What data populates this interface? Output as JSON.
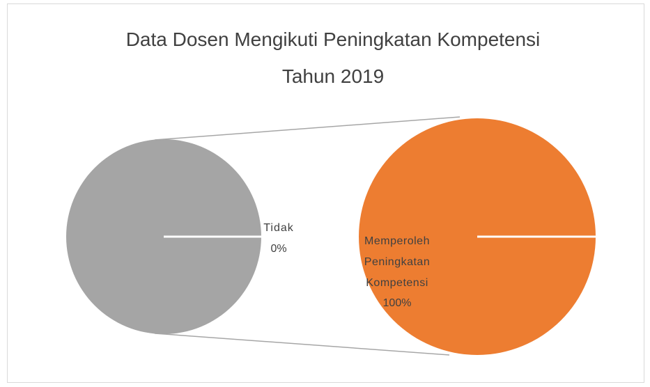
{
  "chart_data": {
    "type": "pie_of_pie",
    "title": "Data Dosen Mengikuti Peningkatan Kompetensi Tahun 2019",
    "categories": [
      "Tidak",
      "Memperoleh Peningkatan Kompetensi"
    ],
    "values": [
      0,
      100
    ],
    "value_labels": [
      "0%",
      "100%"
    ],
    "colors": [
      "#a5a5a5",
      "#ed7d31"
    ]
  }
}
